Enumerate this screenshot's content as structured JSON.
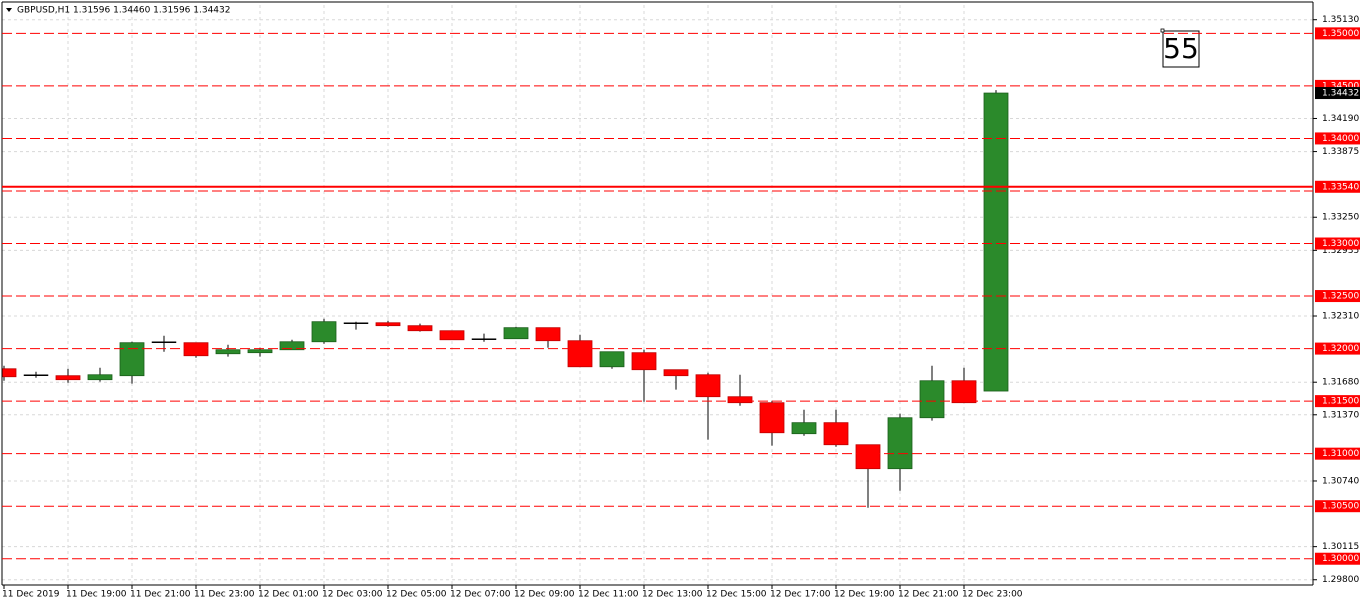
{
  "chart_data": {
    "type": "candlestick",
    "title": "GBPUSD,H1  1.31596 1.34460 1.31596 1.34432",
    "annotation": "55",
    "categories": [
      "11 Dec 2019",
      null,
      "11 Dec 19:00",
      null,
      "11 Dec 21:00",
      null,
      "11 Dec 23:00",
      null,
      "12 Dec 01:00",
      null,
      "12 Dec 03:00",
      null,
      "12 Dec 05:00",
      null,
      "12 Dec 07:00",
      null,
      "12 Dec 09:00",
      null,
      "12 Dec 11:00",
      null,
      "12 Dec 13:00",
      null,
      "12 Dec 15:00",
      null,
      "12 Dec 17:00",
      null,
      "12 Dec 19:00",
      null,
      "12 Dec 21:00",
      null,
      "12 Dec 23:00",
      null
    ],
    "open": [
      1.31808,
      1.31751,
      1.31742,
      1.31704,
      1.31742,
      1.32065,
      1.32056,
      1.31951,
      1.31961,
      1.31989,
      1.32065,
      1.32246,
      1.32246,
      1.32218,
      1.3217,
      1.32094,
      1.32094,
      1.32199,
      1.32075,
      1.31827,
      1.31961,
      1.31799,
      1.31751,
      1.31542,
      1.31485,
      1.3119,
      1.31295,
      1.31085,
      1.30857,
      1.31342,
      1.31694,
      1.31596
    ],
    "high": [
      1.31837,
      1.3178,
      1.31808,
      1.31818,
      1.32065,
      1.32122,
      1.32056,
      1.32037,
      1.32008,
      1.32084,
      1.32284,
      1.32256,
      1.32265,
      1.32237,
      1.3217,
      1.32142,
      1.32208,
      1.32199,
      1.32132,
      1.3197,
      1.31989,
      1.31799,
      1.3177,
      1.31751,
      1.31504,
      1.31418,
      1.31418,
      1.31085,
      1.3138,
      1.31837,
      1.31818,
      1.3446
    ],
    "low": [
      1.31694,
      1.31723,
      1.31675,
      1.31685,
      1.31666,
      1.3197,
      1.31913,
      1.31923,
      1.31923,
      1.31989,
      1.32046,
      1.3218,
      1.32208,
      1.32161,
      1.32084,
      1.32065,
      1.32094,
      1.32008,
      1.31827,
      1.31808,
      1.31494,
      1.31609,
      1.31133,
      1.31456,
      1.31076,
      1.31171,
      1.31066,
      1.30485,
      1.30647,
      1.31314,
      1.31485,
      1.31596
    ],
    "close": [
      1.31732,
      1.31751,
      1.31704,
      1.31751,
      1.32056,
      1.32065,
      1.31932,
      1.31989,
      1.31989,
      1.32065,
      1.32256,
      1.32246,
      1.32218,
      1.3217,
      1.32084,
      1.32094,
      1.32199,
      1.32075,
      1.31827,
      1.3197,
      1.31799,
      1.31742,
      1.31542,
      1.31485,
      1.31199,
      1.31295,
      1.31085,
      1.30857,
      1.31342,
      1.31694,
      1.31485,
      1.34432
    ],
    "up_color": "#2b8a2b",
    "down_color": "#ff0000",
    "doji_color": "#000000",
    "ylim": [
      1.2975,
      1.3527
    ],
    "yticks": [
      {
        "value": 1.3513,
        "label": "1.35130"
      },
      {
        "value": 1.3419,
        "label": "1.34190"
      },
      1.33875,
      {
        "value": 1.3325,
        "label": "1.33250"
      },
      1.32935,
      {
        "value": 1.3231,
        "label": "1.32310"
      },
      {
        "value": 1.3168,
        "label": "1.31680"
      },
      {
        "value": 1.3137,
        "label": "1.31370"
      },
      {
        "value": 1.3074,
        "label": "1.30740"
      },
      1.30115,
      {
        "value": 1.298,
        "label": "1.29800"
      }
    ],
    "grid": true,
    "levels": [
      {
        "value": 1.35,
        "label": "1.35000",
        "style": "dashed"
      },
      {
        "value": 1.345,
        "label": "1.34500",
        "style": "dashed"
      },
      {
        "value": 1.34,
        "label": "1.34000",
        "style": "dashed"
      },
      {
        "value": 1.335,
        "style": "dashed"
      },
      {
        "value": 1.33,
        "label": "1.33000",
        "style": "dashed"
      },
      {
        "value": 1.325,
        "label": "1.32500",
        "style": "dashed"
      },
      {
        "value": 1.32,
        "label": "1.32000",
        "style": "dashed"
      },
      {
        "value": 1.315,
        "label": "1.31500",
        "style": "dashed"
      },
      {
        "value": 1.31,
        "label": "1.31000",
        "style": "dashed"
      },
      {
        "value": 1.305,
        "label": "1.30500",
        "style": "dashed"
      },
      {
        "value": 1.3,
        "label": "1.30000",
        "style": "dashed"
      },
      {
        "value": 1.3354,
        "label": "1.33540",
        "style": "solid"
      }
    ],
    "level_color": "#ff0000",
    "last_price": 1.34432
  }
}
